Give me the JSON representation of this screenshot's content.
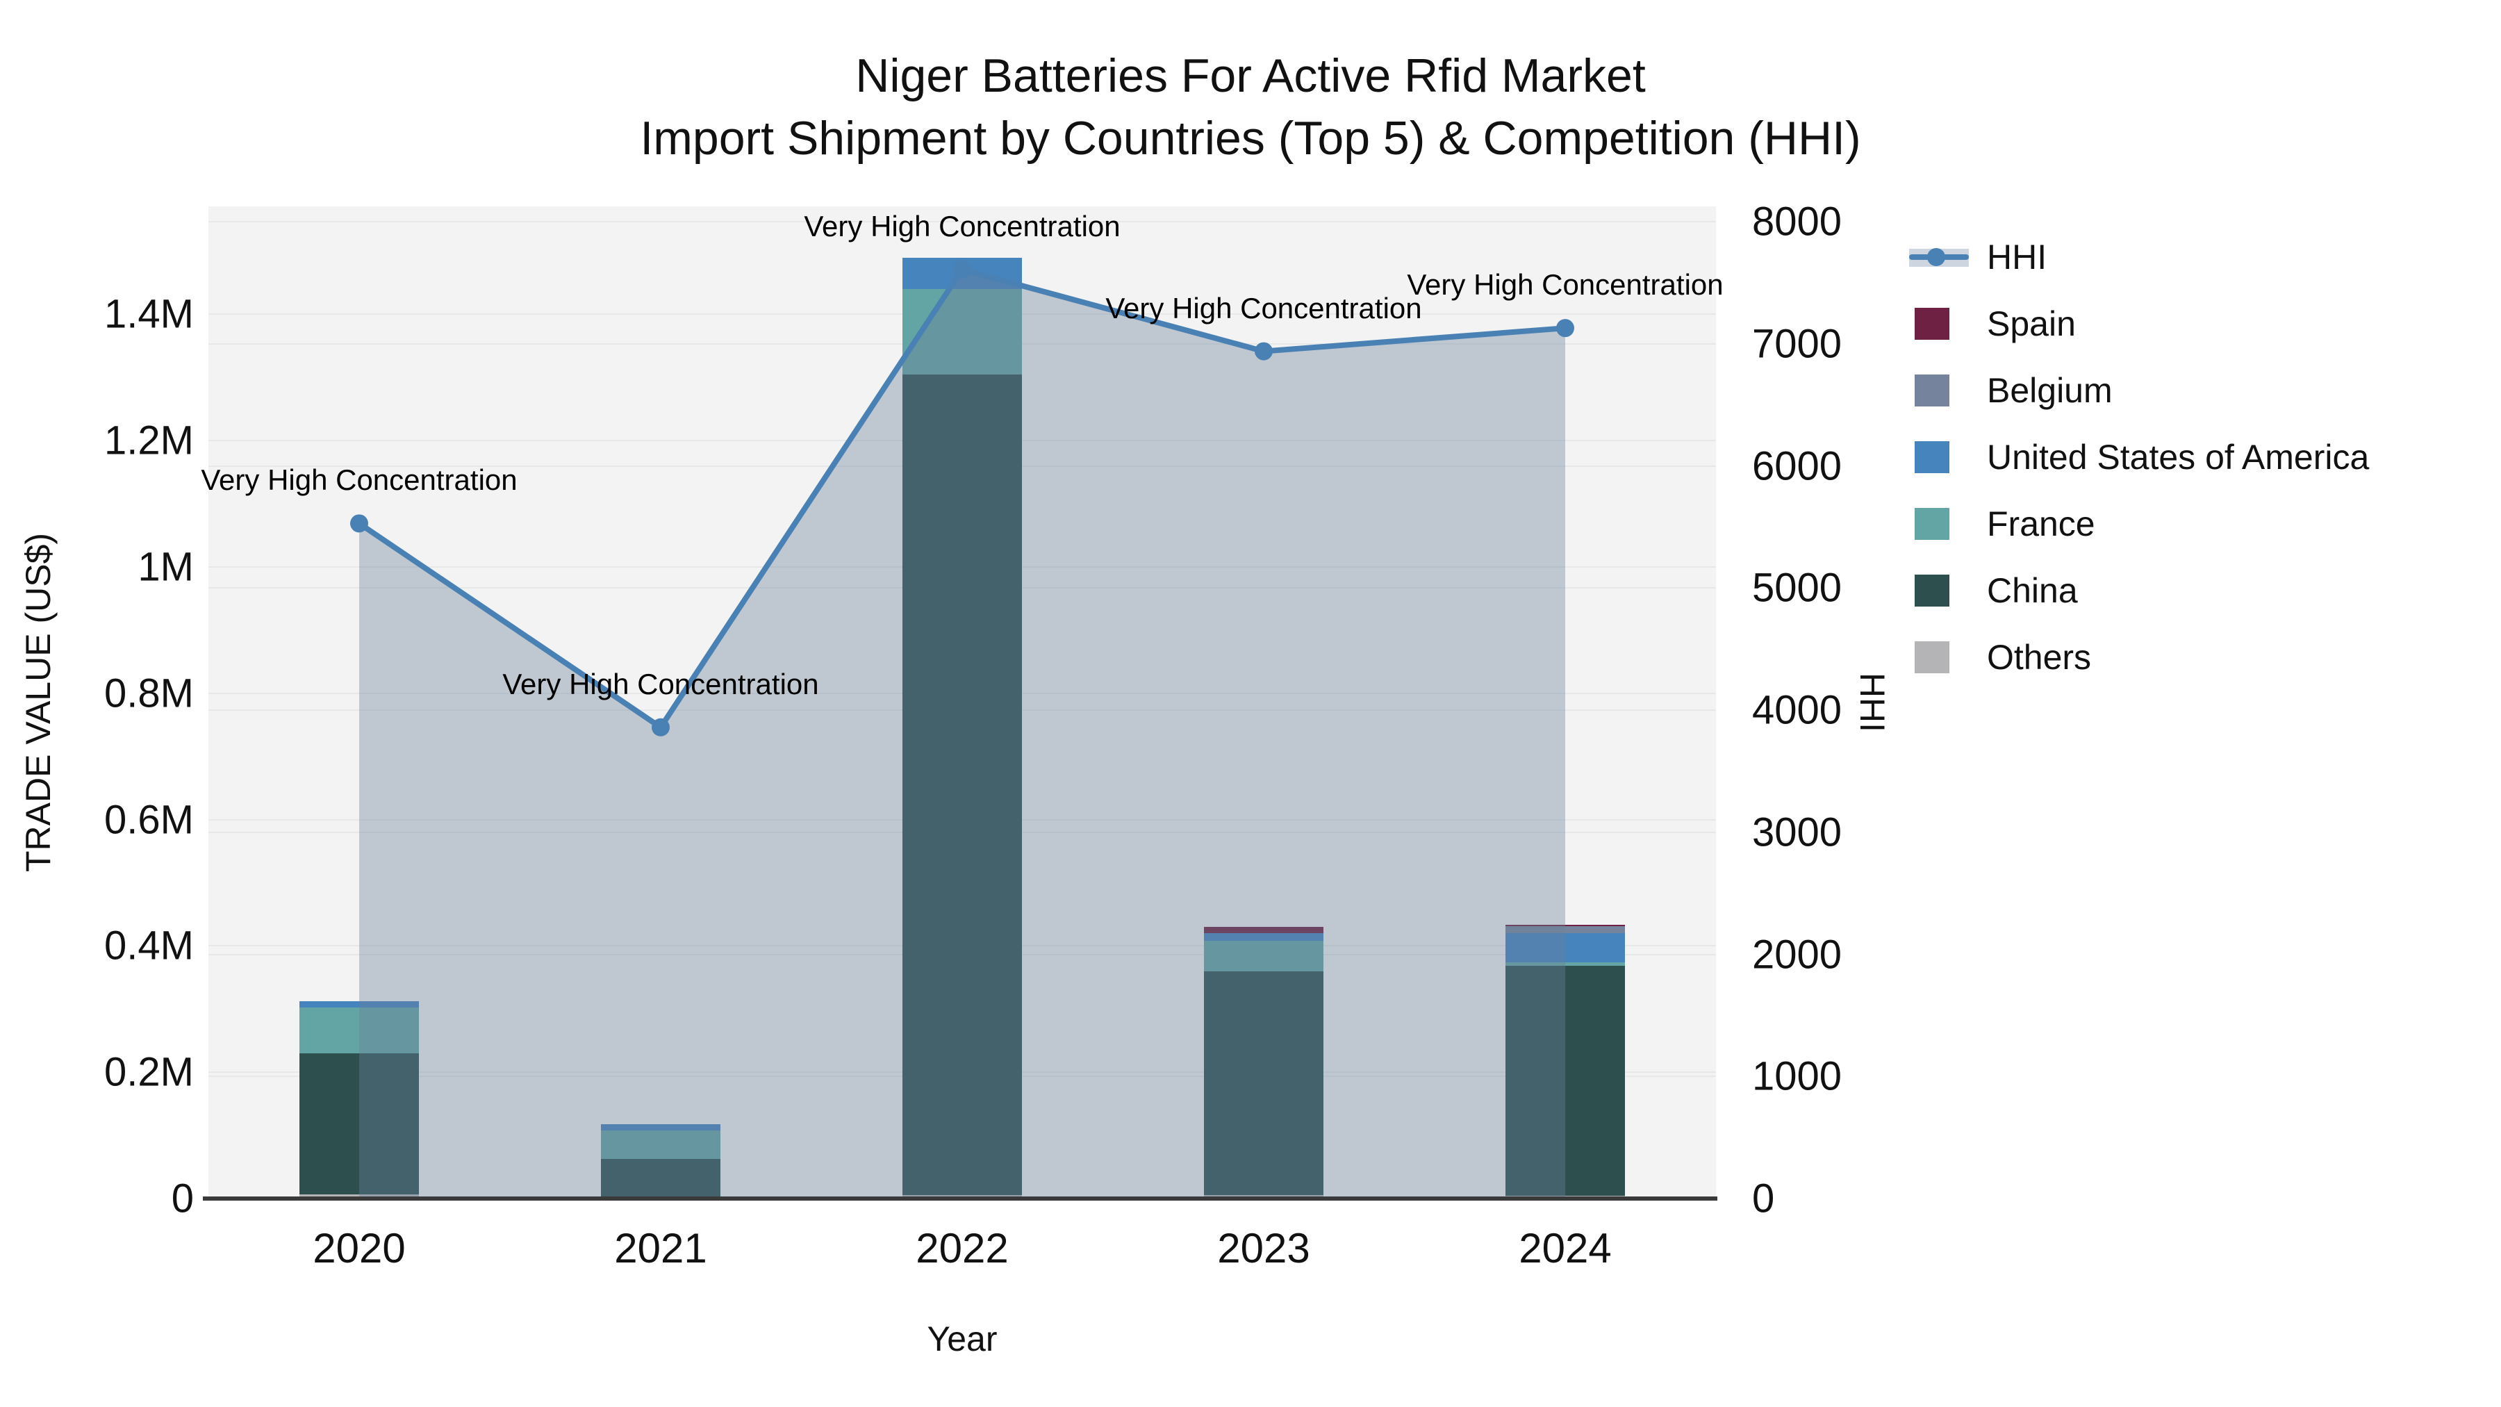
{
  "title": {
    "line1": "Niger Batteries For Active Rfid Market",
    "line2": "Import Shipment by Countries (Top 5) & Competition (HHI)"
  },
  "colors": {
    "plot_bg": "#f2f3f2",
    "grid": "#e6e8ea",
    "spine": "#3a3a3a",
    "hhi_line": "#4a81b4",
    "hhi_area_fill": "rgba(109,130,155,0.38)",
    "legend_band": "#ccd5e0"
  },
  "chart_data": {
    "type": "combo",
    "subtype": "stacked-bar + line + area (secondary axis)",
    "title": "Niger Batteries For Active Rfid Market — Import Shipment by Countries (Top 5) & Competition (HHI)",
    "x_categories": [
      "2020",
      "2021",
      "2022",
      "2023",
      "2024"
    ],
    "bar_series_bottom_to_top": [
      {
        "name": "Others",
        "color": "#b4b4b6",
        "values": [
          7000,
          3000,
          5000,
          5000,
          4000
        ]
      },
      {
        "name": "China",
        "color": "#2d4f4e",
        "values": [
          223000,
          60000,
          1300000,
          355000,
          364000
        ]
      },
      {
        "name": "France",
        "color": "#63a5a4",
        "values": [
          72000,
          45000,
          135000,
          48000,
          6000
        ]
      },
      {
        "name": "United States of America",
        "color": "#4684bd",
        "values": [
          10000,
          10000,
          50000,
          12000,
          46000
        ]
      },
      {
        "name": "Belgium",
        "color": "#75849c",
        "values": [
          0,
          0,
          0,
          0,
          11000
        ]
      },
      {
        "name": "Spain",
        "color": "#6e2142",
        "values": [
          0,
          0,
          0,
          10000,
          2000
        ]
      }
    ],
    "bar_totals": [
      312000,
      118000,
      1490000,
      430000,
      433000
    ],
    "line_series": {
      "name": "HHI",
      "color": "#4a81b4",
      "values": [
        5530,
        3860,
        7610,
        6940,
        7130
      ],
      "area_fill": "rgba(109,130,155,0.38)",
      "marker": "circle"
    },
    "point_annotations": [
      "Very High Concentration",
      "Very High Concentration",
      "Very High Concentration",
      "Very High Concentration",
      "Very High Concentration"
    ],
    "axes": {
      "left": {
        "label": "TRADE VALUE (US$)",
        "ticks": [
          "0",
          "0.2M",
          "0.4M",
          "0.6M",
          "0.8M",
          "1M",
          "1.2M",
          "1.4M"
        ],
        "tick_values": [
          0,
          200000,
          400000,
          600000,
          800000,
          1000000,
          1200000,
          1400000
        ],
        "plot_max": 1571000
      },
      "right": {
        "label": "HHI",
        "ticks": [
          "0",
          "1000",
          "2000",
          "3000",
          "4000",
          "5000",
          "6000",
          "7000",
          "8000"
        ],
        "tick_values": [
          0,
          1000,
          2000,
          3000,
          4000,
          5000,
          6000,
          7000,
          8000
        ],
        "plot_max": 8127
      },
      "x": {
        "label": "Year"
      }
    },
    "legend": [
      {
        "label": "HHI",
        "type": "line",
        "color": "#4a81b4"
      },
      {
        "label": "Spain",
        "type": "patch",
        "color": "#6e2142"
      },
      {
        "label": "Belgium",
        "type": "patch",
        "color": "#75849c"
      },
      {
        "label": "United States of America",
        "type": "patch",
        "color": "#4684bd"
      },
      {
        "label": "France",
        "type": "patch",
        "color": "#63a5a4"
      },
      {
        "label": "China",
        "type": "patch",
        "color": "#2d4f4e"
      },
      {
        "label": "Others",
        "type": "patch",
        "color": "#b4b4b6"
      }
    ],
    "grid": true,
    "legend_position": "right-outside"
  }
}
